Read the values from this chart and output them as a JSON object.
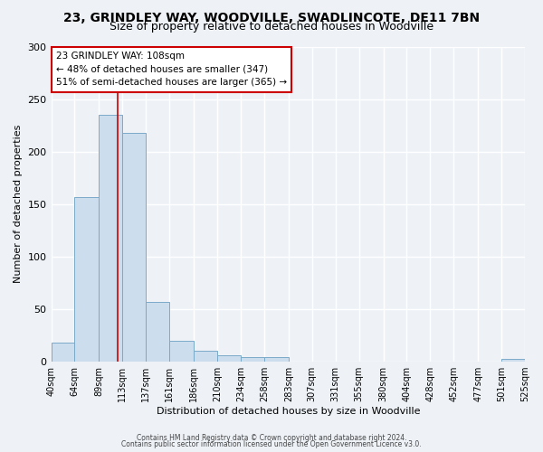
{
  "title1": "23, GRINDLEY WAY, WOODVILLE, SWADLINCOTE, DE11 7BN",
  "title2": "Size of property relative to detached houses in Woodville",
  "xlabel": "Distribution of detached houses by size in Woodville",
  "ylabel": "Number of detached properties",
  "bin_edges": [
    40,
    64,
    89,
    113,
    137,
    161,
    186,
    210,
    234,
    258,
    283,
    307,
    331,
    355,
    380,
    404,
    428,
    452,
    477,
    501,
    525
  ],
  "bin_labels": [
    "40sqm",
    "64sqm",
    "89sqm",
    "113sqm",
    "137sqm",
    "161sqm",
    "186sqm",
    "210sqm",
    "234sqm",
    "258sqm",
    "283sqm",
    "307sqm",
    "331sqm",
    "355sqm",
    "380sqm",
    "404sqm",
    "428sqm",
    "452sqm",
    "477sqm",
    "501sqm",
    "525sqm"
  ],
  "counts": [
    18,
    157,
    235,
    218,
    57,
    20,
    10,
    6,
    4,
    4,
    0,
    0,
    0,
    0,
    0,
    0,
    0,
    0,
    0,
    3
  ],
  "property_size": 108,
  "bar_color": "#ccdded",
  "bar_edge_color": "#7aaac8",
  "vline_color": "#cc0000",
  "annotation_line1": "23 GRINDLEY WAY: 108sqm",
  "annotation_line2": "← 48% of detached houses are smaller (347)",
  "annotation_line3": "51% of semi-detached houses are larger (365) →",
  "annotation_box_color": "#ffffff",
  "annotation_border_color": "#cc0000",
  "ylim": [
    0,
    300
  ],
  "yticks": [
    0,
    50,
    100,
    150,
    200,
    250,
    300
  ],
  "footer1": "Contains HM Land Registry data © Crown copyright and database right 2024.",
  "footer2": "Contains public sector information licensed under the Open Government Licence v3.0.",
  "bg_color": "#eef2f7",
  "plot_bg_color": "#eef2f7",
  "grid_color": "#ffffff",
  "title1_fontsize": 10,
  "title2_fontsize": 9,
  "ylabel_fontsize": 8,
  "xlabel_fontsize": 8,
  "tick_fontsize": 7,
  "footer_fontsize": 5.5
}
